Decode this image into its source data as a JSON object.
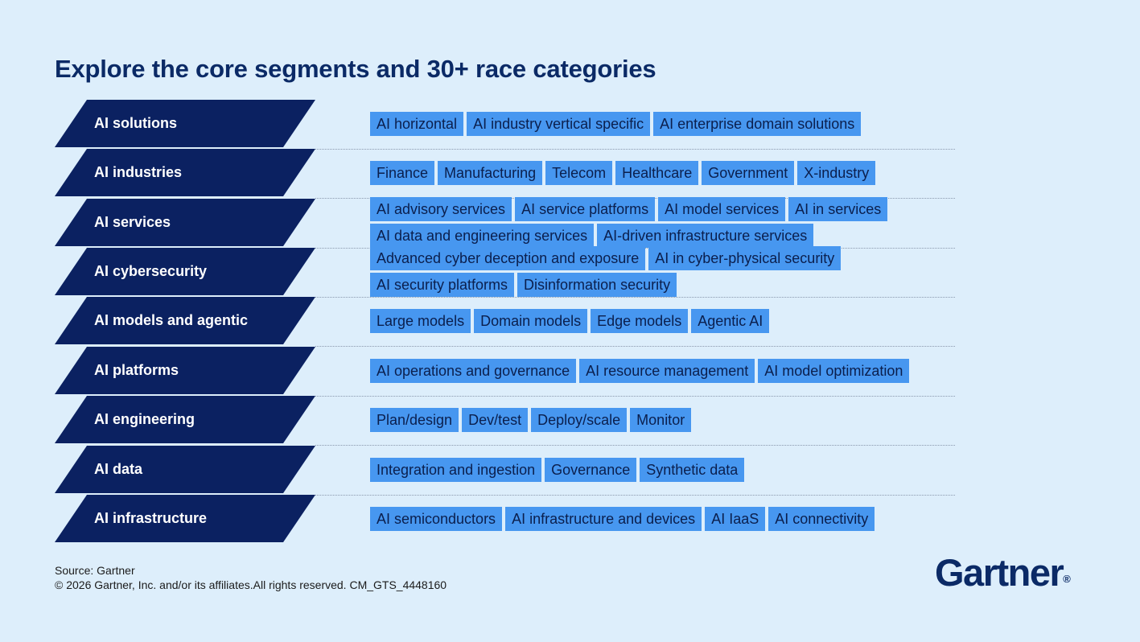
{
  "title": "Explore the core segments and 30+ race categories",
  "accent_colors": {
    "segment_bg": "#0b2161",
    "category_bg": "#4797f0",
    "page_bg": "#ddeefb"
  },
  "segments": [
    {
      "label": "AI solutions",
      "lines": [
        [
          "AI horizontal",
          "AI industry vertical specific",
          "AI enterprise domain solutions"
        ]
      ]
    },
    {
      "label": "AI industries",
      "lines": [
        [
          "Finance",
          "Manufacturing",
          "Telecom",
          "Healthcare",
          "Government",
          "X-industry"
        ]
      ]
    },
    {
      "label": "AI services",
      "lines": [
        [
          "AI advisory services",
          "AI service platforms",
          "AI model services",
          "AI in services"
        ],
        [
          "AI data and engineering services",
          "AI-driven infrastructure services"
        ]
      ]
    },
    {
      "label": "AI cybersecurity",
      "lines": [
        [
          "Advanced cyber deception and exposure",
          "AI in cyber-physical security"
        ],
        [
          "AI security platforms",
          "Disinformation security"
        ]
      ]
    },
    {
      "label": "AI models and agentic",
      "lines": [
        [
          "Large models",
          "Domain models",
          "Edge models",
          "Agentic AI"
        ]
      ]
    },
    {
      "label": "AI platforms",
      "lines": [
        [
          "AI operations and governance",
          "AI resource management",
          "AI model optimization"
        ]
      ]
    },
    {
      "label": "AI engineering",
      "lines": [
        [
          "Plan/design",
          "Dev/test",
          "Deploy/scale",
          "Monitor"
        ]
      ]
    },
    {
      "label": "AI data",
      "lines": [
        [
          "Integration and ingestion",
          "Governance",
          "Synthetic data"
        ]
      ]
    },
    {
      "label": "AI infrastructure",
      "lines": [
        [
          "AI semiconductors",
          "AI infrastructure and devices",
          "AI IaaS",
          "AI connectivity"
        ]
      ]
    }
  ],
  "source": "Source: Gartner",
  "copyright": "© 2026 Gartner, Inc. and/or its affiliates.All rights reserved. CM_GTS_4448160",
  "logo_text": "Gartner",
  "logo_mark": "®"
}
